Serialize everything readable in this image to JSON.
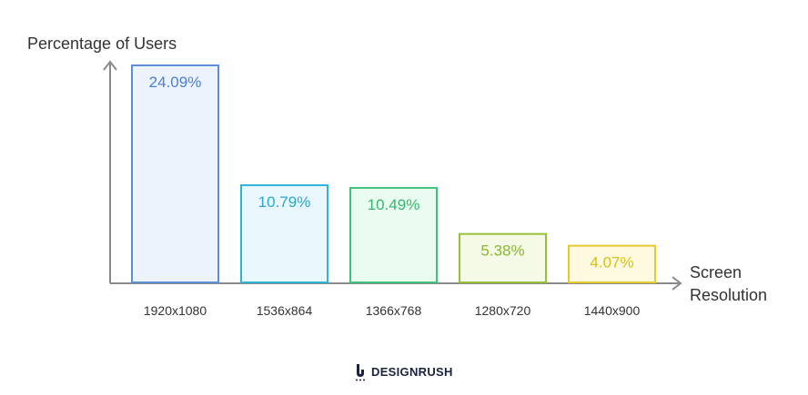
{
  "chart_data": {
    "type": "bar",
    "ylabel": "Percentage of Users",
    "xlabel": [
      "Screen",
      "Resolution"
    ],
    "categories": [
      "1920x1080",
      "1536x864",
      "1366x768",
      "1280x720",
      "1440x900"
    ],
    "values": [
      24.09,
      10.79,
      10.49,
      5.38,
      4.07
    ],
    "value_labels": [
      "24.09%",
      "10.79%",
      "10.49%",
      "5.38%",
      "4.07%"
    ],
    "ylim": [
      0,
      24.09
    ],
    "grid": false,
    "colors": {
      "stroke": [
        "#5b8fd6",
        "#2fb3d6",
        "#3fc27c",
        "#98bf3a",
        "#e6c92a"
      ],
      "fill": [
        "#edf3fd",
        "#e9f8fd",
        "#eafcef",
        "#f4fae5",
        "#fdfadf"
      ],
      "label": [
        "#4a7fcf",
        "#2aa7cc",
        "#34b86f",
        "#8db534",
        "#dcbf16"
      ]
    }
  },
  "brand": {
    "name": "DESIGNRUSH",
    "logo_icon": "designrush-logo-icon"
  }
}
